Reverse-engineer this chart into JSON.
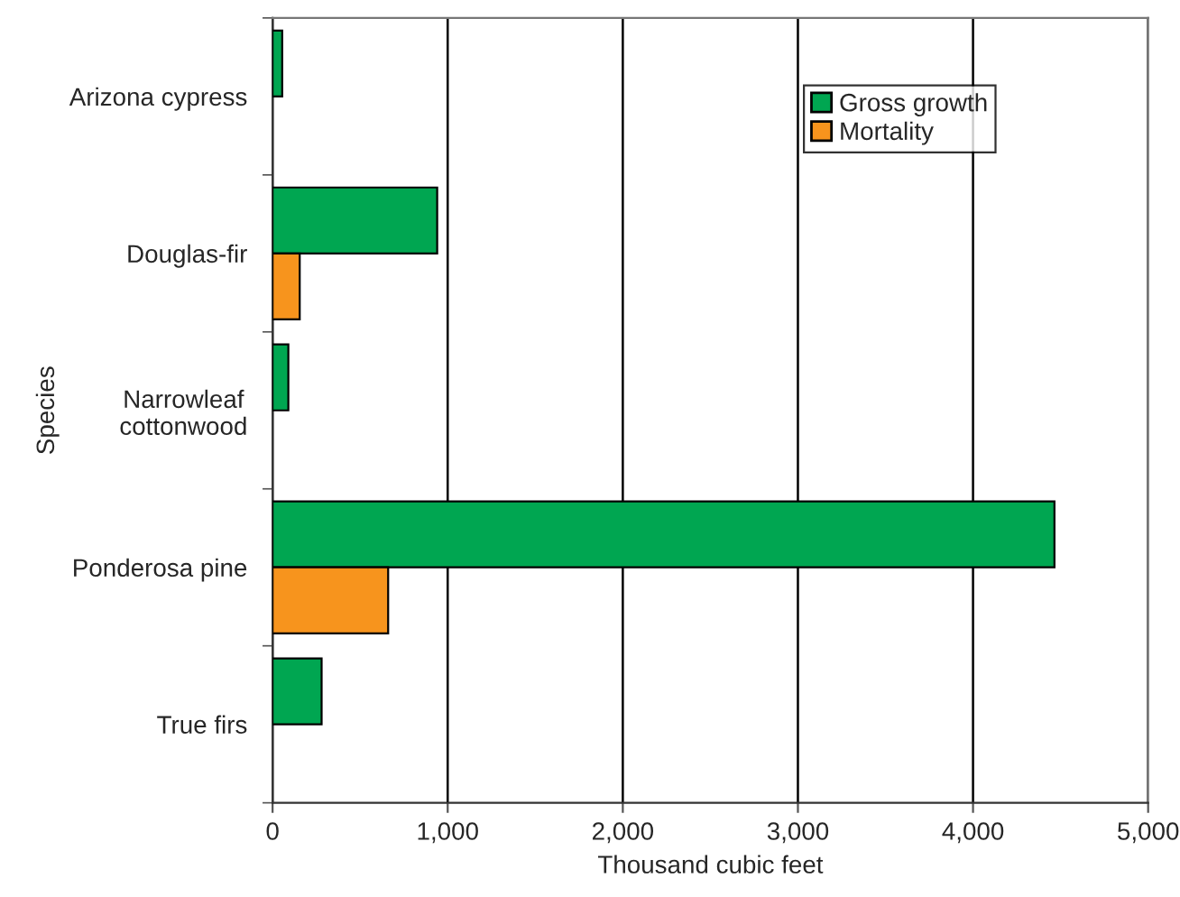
{
  "chart_data": {
    "type": "bar",
    "orientation": "horizontal",
    "categories": [
      "Arizona cypress",
      "Douglas-fir",
      "Narrowleaf\ncottonwood",
      "Ponderosa pine",
      "True firs"
    ],
    "series": [
      {
        "name": "Gross growth",
        "color": "#00a651",
        "values": [
          55,
          940,
          90,
          4465,
          280
        ]
      },
      {
        "name": "Mortality",
        "color": "#f7941d",
        "values": [
          null,
          155,
          null,
          660,
          null
        ]
      }
    ],
    "xlabel": "Thousand cubic feet",
    "ylabel": "Species",
    "xlim": [
      0,
      5000
    ],
    "xticks": [
      {
        "value": 0,
        "label": "0"
      },
      {
        "value": 1000,
        "label": "1,000"
      },
      {
        "value": 2000,
        "label": "2,000"
      },
      {
        "value": 3000,
        "label": "3,000"
      },
      {
        "value": 4000,
        "label": "4,000"
      },
      {
        "value": 5000,
        "label": "5,000"
      }
    ],
    "grid": "x",
    "legend": "top right"
  }
}
